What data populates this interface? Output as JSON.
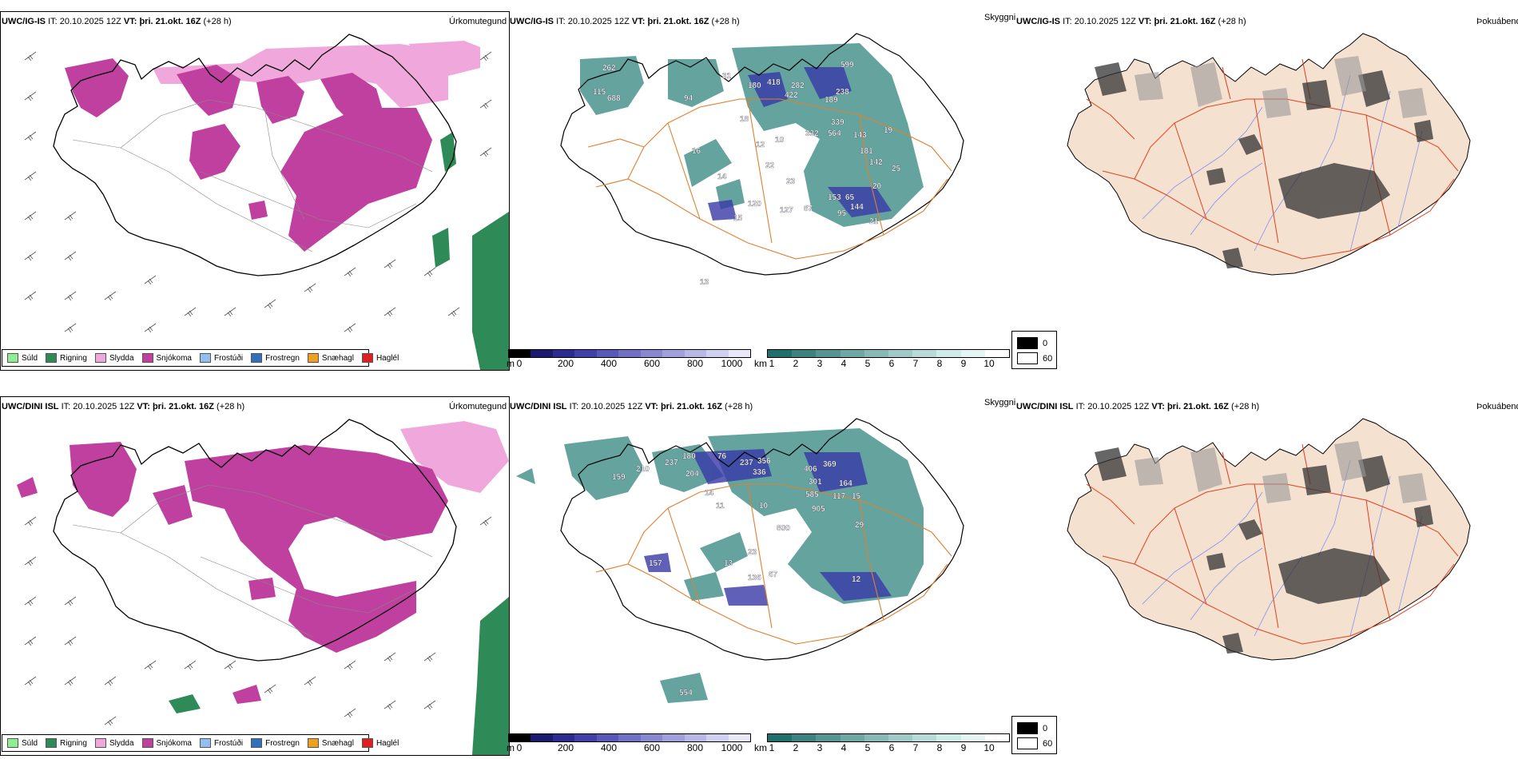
{
  "panels": {
    "top": {
      "precip": {
        "model": "UWC/IG-IS",
        "it_label": "IT:",
        "it": "20.10.2025 12Z",
        "vt_label": "VT:",
        "vt": "þri. 21.okt. 16Z",
        "lead": "(+28 h)",
        "right": "Úrkomutegund"
      },
      "cloud": {
        "model": "UWC/IG-IS",
        "it_label": "IT:",
        "it": "20.10.2025 12Z",
        "vt_label": "VT:",
        "vt": "þri. 21.okt. 16Z",
        "lead": "(+28 h)",
        "right": "Skyggni"
      },
      "fog": {
        "model": "UWC/IG-IS",
        "it_label": "IT:",
        "it": "20.10.2025 12Z",
        "vt_label": "VT:",
        "vt": "þri. 21.okt. 16Z",
        "lead": "(+28 h)",
        "right": "Þokuábendi"
      },
      "labels": [
        "262",
        "688",
        "94",
        "31",
        "180",
        "418",
        "282",
        "422",
        "599",
        "238",
        "189",
        "339",
        "564",
        "143",
        "181",
        "142",
        "153",
        "65",
        "144",
        "120",
        "127",
        "87",
        "95",
        "332",
        "115",
        "20",
        "18",
        "12",
        "10",
        "14",
        "15",
        "22",
        "19",
        "25",
        "23",
        "21",
        "16",
        "13"
      ]
    },
    "bottom": {
      "precip": {
        "model": "UWC/DINI ISL",
        "it_label": "IT:",
        "it": "20.10.2025 12Z",
        "vt_label": "VT:",
        "vt": "þri. 21.okt. 16Z",
        "lead": "(+28 h)",
        "right": "Úrkomutegund"
      },
      "cloud": {
        "model": "UWC/DINI ISL",
        "it_label": "IT:",
        "it": "20.10.2025 12Z",
        "vt_label": "VT:",
        "vt": "þri. 21.okt. 16Z",
        "lead": "(+28 h)",
        "right": "Skyggni"
      },
      "fog": {
        "model": "UWC/DINI ISL",
        "it_label": "IT:",
        "it": "20.10.2025 12Z",
        "vt_label": "VT:",
        "vt": "þri. 21.okt. 16Z",
        "lead": "(+28 h)",
        "right": "Þokuábendi"
      },
      "labels": [
        "210",
        "237",
        "180",
        "204",
        "76",
        "237",
        "356",
        "336",
        "406",
        "369",
        "301",
        "585",
        "117",
        "905",
        "164",
        "15",
        "29",
        "10",
        "800",
        "23",
        "13",
        "136",
        "67",
        "12",
        "157",
        "554",
        "159",
        "14",
        "11"
      ]
    }
  },
  "precip_legend": [
    {
      "label": "Súld",
      "color": "#90ee90"
    },
    {
      "label": "Rigning",
      "color": "#2e8b57"
    },
    {
      "label": "Slydda",
      "color": "#f0a8dc"
    },
    {
      "label": "Snjókoma",
      "color": "#c040a0"
    },
    {
      "label": "Frostúði",
      "color": "#90c0f0"
    },
    {
      "label": "Frostregn",
      "color": "#3070c0"
    },
    {
      "label": "Snæhagl",
      "color": "#f0a020"
    },
    {
      "label": "Haglél",
      "color": "#e02020"
    }
  ],
  "ceiling_bar": {
    "unit": "m",
    "ticks": [
      "0",
      "200",
      "400",
      "600",
      "800",
      "1000"
    ],
    "colors": [
      "#000000",
      "#1a1a6e",
      "#2c2c90",
      "#4040a8",
      "#5858b8",
      "#7070c4",
      "#8888d0",
      "#a0a0dc",
      "#b8b8e6",
      "#d0d0f0",
      "#e8e8f8"
    ]
  },
  "visibility_bar": {
    "unit": "km",
    "ticks": [
      "1",
      "2",
      "3",
      "4",
      "5",
      "6",
      "7",
      "8",
      "9",
      "10"
    ],
    "colors": [
      "#1f6f6b",
      "#3d827e",
      "#569591",
      "#6fa7a4",
      "#88b9b6",
      "#a0cac8",
      "#b8dbd9",
      "#cfebea",
      "#e4f5f4",
      "#ffffff"
    ]
  },
  "fog_legend": {
    "black_value": "0",
    "white_value": "60"
  },
  "colors": {
    "land": "#f5e1d0",
    "coast": "#000000",
    "roads_orange": "#e08030",
    "roads_red": "#e04020",
    "rivers": "#8090f0",
    "snow": "#c040a0",
    "sleet": "#f0a8dc",
    "rain": "#2e8b57",
    "cloud_teal": "#3d8a84",
    "cloud_blue": "#3030a0"
  }
}
